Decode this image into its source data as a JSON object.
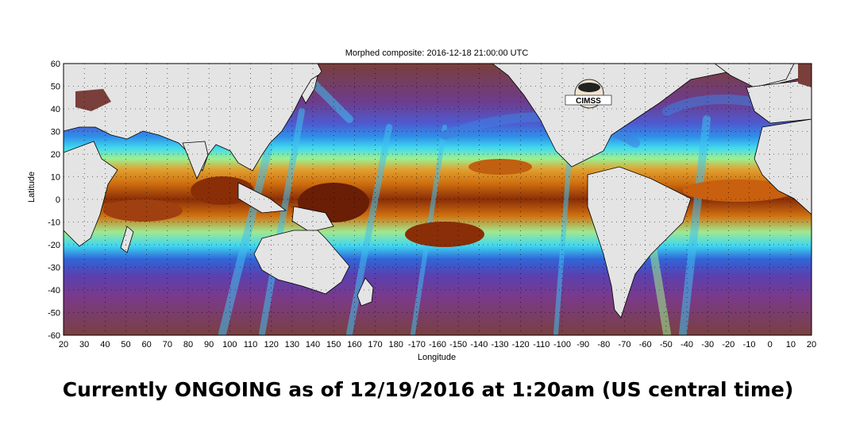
{
  "map": {
    "title": "Morphed composite: 2016-12-18 21:00:00 UTC",
    "xlabel": "Longitude",
    "ylabel": "Latitude",
    "x_ticks": [
      "20",
      "30",
      "40",
      "50",
      "60",
      "70",
      "80",
      "90",
      "100",
      "110",
      "120",
      "130",
      "140",
      "150",
      "160",
      "170",
      "180",
      "-170",
      "-160",
      "-150",
      "-140",
      "-130",
      "-120",
      "-110",
      "-100",
      "-90",
      "-80",
      "-70",
      "-60",
      "-50",
      "-40",
      "-30",
      "-20",
      "-10",
      "0",
      "10",
      "20"
    ],
    "y_ticks": [
      "60",
      "50",
      "40",
      "30",
      "20",
      "10",
      "0",
      "-10",
      "-20",
      "-30",
      "-40",
      "-50",
      "-60"
    ],
    "logo_text": "CIMSS",
    "colors": {
      "land": "#e4e4e4",
      "dry": "#7a3f3a",
      "purple": "#7a38a0",
      "blue": "#2f66d8",
      "cyan": "#38d8f0",
      "green": "#9cf090",
      "orange": "#d87010",
      "dark_brown": "#6a1e06"
    }
  },
  "caption": "Currently ONGOING as of 12/19/2016 at 1:20am (US central time)"
}
